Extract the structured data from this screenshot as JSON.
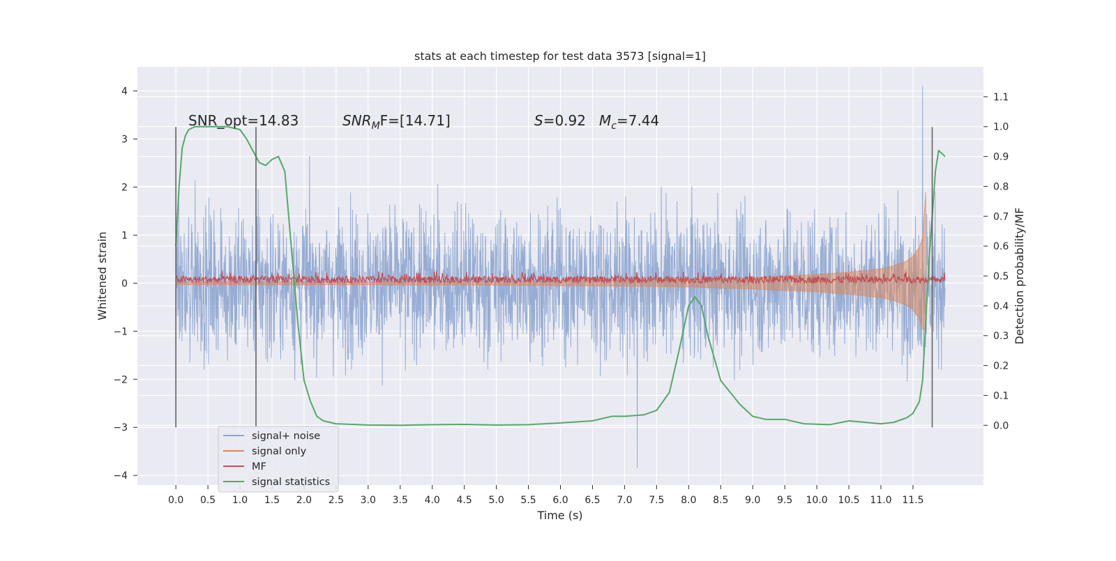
{
  "chart_data": {
    "type": "line",
    "title": "stats at each timestep for test data 3573 [signal=1]",
    "xlabel": "Time (s)",
    "ylabel_left": "Whitened strain",
    "ylabel_right": "Detection probability/MF",
    "xlim": [
      -0.6,
      12.6
    ],
    "ylim_left": [
      -4.2,
      4.5
    ],
    "ylim_right": [
      -0.2,
      1.2
    ],
    "xticks": [
      0.0,
      0.5,
      1.0,
      1.5,
      2.0,
      2.5,
      3.0,
      3.5,
      4.0,
      4.5,
      5.0,
      5.5,
      6.0,
      6.5,
      7.0,
      7.5,
      8.0,
      8.5,
      9.0,
      9.5,
      10.0,
      10.5,
      11.0,
      11.5
    ],
    "xtick_labels": [
      "0.0",
      "0.5",
      "1.0",
      "1.5",
      "2.0",
      "2.5",
      "3.0",
      "3.5",
      "4.0",
      "4.5",
      "5.0",
      "5.5",
      "6.0",
      "6.5",
      "7.0",
      "7.5",
      "8.0",
      "8.5",
      "9.0",
      "9.5",
      "10.0",
      "10.5",
      "11.0",
      "11.5"
    ],
    "yticks_left": [
      4,
      3,
      2,
      1,
      0,
      -1,
      -2,
      -3,
      -4
    ],
    "ytick_labels_left": [
      "4",
      "3",
      "2",
      "1",
      "0",
      "−1",
      "−2",
      "−3",
      "−4"
    ],
    "yticks_right": [
      1.1,
      1.0,
      0.9,
      0.8,
      0.7,
      0.6,
      0.5,
      0.4,
      0.3,
      0.2,
      0.1,
      0.0
    ],
    "ytick_labels_right": [
      "1.1",
      "1.0",
      "0.9",
      "0.8",
      "0.7",
      "0.6",
      "0.5",
      "0.4",
      "0.3",
      "0.2",
      "0.1",
      "0.0"
    ],
    "grid": true,
    "legend_position": "lower-left",
    "annotations": {
      "snr_opt": "SNR_opt=14.83",
      "snr_mf_pre": "SNR",
      "snr_mf_sub": "M",
      "snr_mf_post": "F=[14.71]",
      "s_pre": "S",
      "s_post": "=0.92",
      "mc_pre": "M",
      "mc_sub": "c",
      "mc_post": "=7.44"
    },
    "vlines_x": [
      0.0,
      1.25,
      11.8
    ],
    "vlines_ymin": -3.0,
    "vlines_ymax": 3.25,
    "noise_series": {
      "name": "signal+ noise",
      "x_range": [
        0.0,
        12.0
      ],
      "typical_envelope": [
        -1.5,
        1.6
      ],
      "peak_max": 4.1,
      "peak_max_x": 11.65,
      "peak_min": -3.85,
      "peak_min_x": 7.2
    },
    "signal_only_series": {
      "name": "signal only",
      "x": [
        0.0,
        1.0,
        2.0,
        3.0,
        4.0,
        5.0,
        6.0,
        7.0,
        8.0,
        8.5,
        9.0,
        9.5,
        10.0,
        10.5,
        11.0,
        11.2,
        11.4,
        11.5,
        11.6,
        11.65,
        11.7
      ],
      "upper": [
        0.03,
        0.03,
        0.03,
        0.03,
        0.04,
        0.04,
        0.05,
        0.06,
        0.08,
        0.1,
        0.12,
        0.15,
        0.18,
        0.23,
        0.3,
        0.36,
        0.46,
        0.56,
        0.75,
        0.95,
        1.9
      ],
      "lower": [
        -0.03,
        -0.03,
        -0.03,
        -0.03,
        -0.04,
        -0.04,
        -0.05,
        -0.06,
        -0.08,
        -0.1,
        -0.12,
        -0.15,
        -0.18,
        -0.23,
        -0.3,
        -0.36,
        -0.46,
        -0.56,
        -0.75,
        -0.95,
        -1.0
      ]
    },
    "mf_series": {
      "name": "MF",
      "x_range": [
        0.0,
        12.0
      ],
      "band": [
        0.0,
        0.15
      ],
      "peak": 0.25
    },
    "statistics_series": {
      "name": "signal statistics",
      "x": [
        0.0,
        0.05,
        0.1,
        0.15,
        0.2,
        0.3,
        0.5,
        0.8,
        1.0,
        1.1,
        1.2,
        1.3,
        1.4,
        1.5,
        1.6,
        1.7,
        1.8,
        1.9,
        2.0,
        2.1,
        2.2,
        2.3,
        2.5,
        3.0,
        3.5,
        4.0,
        4.5,
        5.0,
        5.5,
        6.0,
        6.5,
        6.8,
        7.0,
        7.3,
        7.5,
        7.7,
        7.85,
        8.0,
        8.1,
        8.2,
        8.3,
        8.5,
        8.8,
        9.0,
        9.2,
        9.5,
        9.8,
        10.2,
        10.5,
        11.0,
        11.2,
        11.4,
        11.5,
        11.6,
        11.65,
        11.7,
        11.75,
        11.8,
        11.85,
        11.9,
        11.95,
        12.0
      ],
      "y": [
        0.6,
        0.8,
        0.93,
        0.97,
        0.99,
        1.0,
        1.0,
        1.0,
        0.99,
        0.96,
        0.92,
        0.88,
        0.87,
        0.89,
        0.9,
        0.85,
        0.6,
        0.35,
        0.15,
        0.08,
        0.03,
        0.015,
        0.005,
        0.001,
        0.0,
        0.002,
        0.003,
        0.001,
        0.002,
        0.008,
        0.015,
        0.03,
        0.03,
        0.035,
        0.05,
        0.11,
        0.25,
        0.4,
        0.43,
        0.4,
        0.3,
        0.15,
        0.07,
        0.03,
        0.02,
        0.02,
        0.005,
        0.002,
        0.015,
        0.005,
        0.01,
        0.025,
        0.04,
        0.08,
        0.15,
        0.35,
        0.55,
        0.7,
        0.85,
        0.92,
        0.91,
        0.9
      ]
    },
    "colors": {
      "background": "#eaeaf2",
      "grid": "#ffffff",
      "noise": "#8da5cf",
      "signal_only": "#dd8452",
      "mf": "#c44e52",
      "statistics": "#55a868",
      "vline": "#595959"
    }
  }
}
